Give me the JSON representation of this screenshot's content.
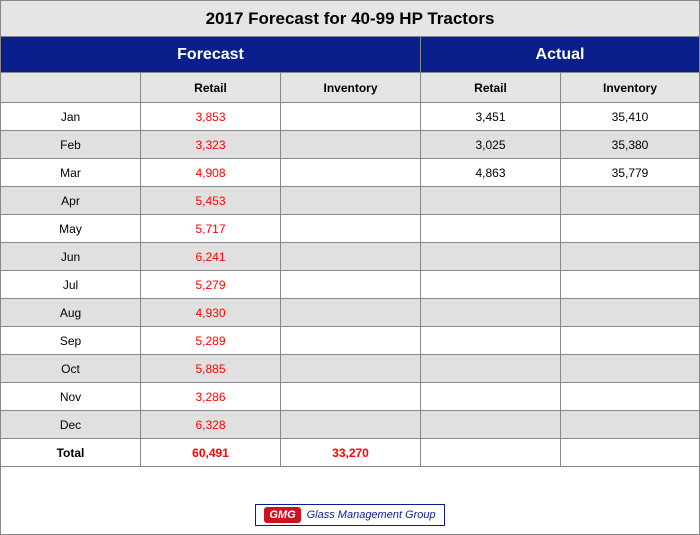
{
  "title": "2017 Forecast for 40-99 HP Tractors",
  "headers": {
    "forecast": "Forecast",
    "actual": "Actual"
  },
  "subheaders": {
    "month": "",
    "fretail": "Retail",
    "finv": "Inventory",
    "aretail": "Retail",
    "ainv": "Inventory"
  },
  "colors": {
    "header_bg": "#0b1f8c",
    "header_text": "#ffffff",
    "band_even": "#e0e0e0",
    "band_odd": "#ffffff",
    "forecast_red": "#ff0000",
    "text": "#000000"
  },
  "rows": [
    {
      "month": "Jan",
      "fretail": "3,853",
      "finv": "",
      "aretail": "3,451",
      "ainv": "35,410"
    },
    {
      "month": "Feb",
      "fretail": "3,323",
      "finv": "",
      "aretail": "3,025",
      "ainv": "35,380"
    },
    {
      "month": "Mar",
      "fretail": "4,908",
      "finv": "",
      "aretail": "4,863",
      "ainv": "35,779"
    },
    {
      "month": "Apr",
      "fretail": "5,453",
      "finv": "",
      "aretail": "",
      "ainv": ""
    },
    {
      "month": "May",
      "fretail": "5,717",
      "finv": "",
      "aretail": "",
      "ainv": ""
    },
    {
      "month": "Jun",
      "fretail": "6,241",
      "finv": "",
      "aretail": "",
      "ainv": ""
    },
    {
      "month": "Jul",
      "fretail": "5,279",
      "finv": "",
      "aretail": "",
      "ainv": ""
    },
    {
      "month": "Aug",
      "fretail": "4,930",
      "finv": "",
      "aretail": "",
      "ainv": ""
    },
    {
      "month": "Sep",
      "fretail": "5,289",
      "finv": "",
      "aretail": "",
      "ainv": ""
    },
    {
      "month": "Oct",
      "fretail": "5,885",
      "finv": "",
      "aretail": "",
      "ainv": ""
    },
    {
      "month": "Nov",
      "fretail": "3,286",
      "finv": "",
      "aretail": "",
      "ainv": ""
    },
    {
      "month": "Dec",
      "fretail": "6,328",
      "finv": "",
      "aretail": "",
      "ainv": ""
    }
  ],
  "total": {
    "month": "Total",
    "fretail": "60,491",
    "finv": "33,270",
    "aretail": "",
    "ainv": ""
  },
  "logo": {
    "badge": "GMG",
    "text": "Glass Management Group"
  }
}
